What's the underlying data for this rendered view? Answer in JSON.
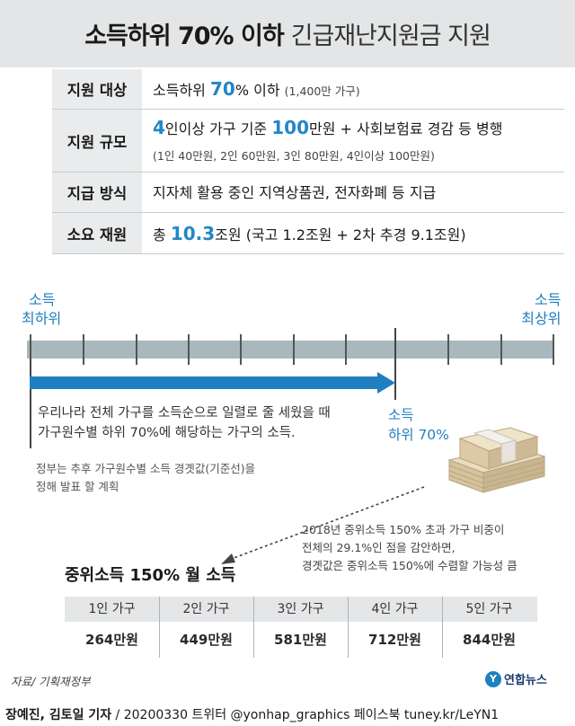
{
  "header": {
    "title_bold": "소득하위 70% 이하",
    "title_light": "긴급재난지원금 지원"
  },
  "rows": [
    {
      "label": "지원 대상",
      "pre": "소득하위 ",
      "accent": "70",
      "post": "% 이하 ",
      "note": "(1,400만 가구)"
    },
    {
      "label": "지원 규모",
      "accent1": "4",
      "mid1": "인이상 가구 기준 ",
      "accent2": "100",
      "mid2": "만원 + 사회보험료 경감 등 병행",
      "note": "(1인 40만원, 2인 60만원, 3인 80만원, 4인이상 100만원)"
    },
    {
      "label": "지급 방식",
      "text": "지자체 활용 중인 지역상품권, 전자화폐 등 지급"
    },
    {
      "label": "소요 재원",
      "pre": "총 ",
      "accent": "10.3",
      "post": "조원 (국고 1.2조원 + 2차 추경 9.1조원)"
    }
  ],
  "timeline": {
    "left_label_1": "소득",
    "left_label_2": "최하위",
    "right_label_1": "소득",
    "right_label_2": "최상위",
    "desc_1": "우리나라 전체 가구를 소득순으로 일렬로 줄 세웠을 때",
    "desc_2": "가구원수별 하위 70%에 해당하는 가구의 소득.",
    "subdesc_1": "정부는 추후 가구원수별 소득 경곗값(기준선)을",
    "subdesc_2": "정해 발표 할 계획",
    "marker_1": "소득",
    "marker_2": "하위 70%",
    "note_1": "2018년 중위소득 150% 초과 가구 비중이",
    "note_2": "전체의 29.1%인 점을 감안하면,",
    "note_3": "경곗값은 중위소득 150%에 수렴할 가능성 큼"
  },
  "table": {
    "title": "중위소득 150% 월 소득",
    "headers": [
      "1인 가구",
      "2인 가구",
      "3인 가구",
      "4인 가구",
      "5인 가구"
    ],
    "values": [
      "264만원",
      "449만원",
      "581만원",
      "712만원",
      "844만원"
    ]
  },
  "source": "자료/ 기획재정부",
  "logo": "연합뉴스",
  "credit": {
    "authors": "장예진, 김토일 기자",
    "rest": " / 20200330 트위터 @yonhap_graphics  페이스북 tuney.kr/LeYN1"
  },
  "colors": {
    "accent": "#1f7fc0",
    "bar": "#a9b7be",
    "header_bg": "#e3e5e6"
  }
}
